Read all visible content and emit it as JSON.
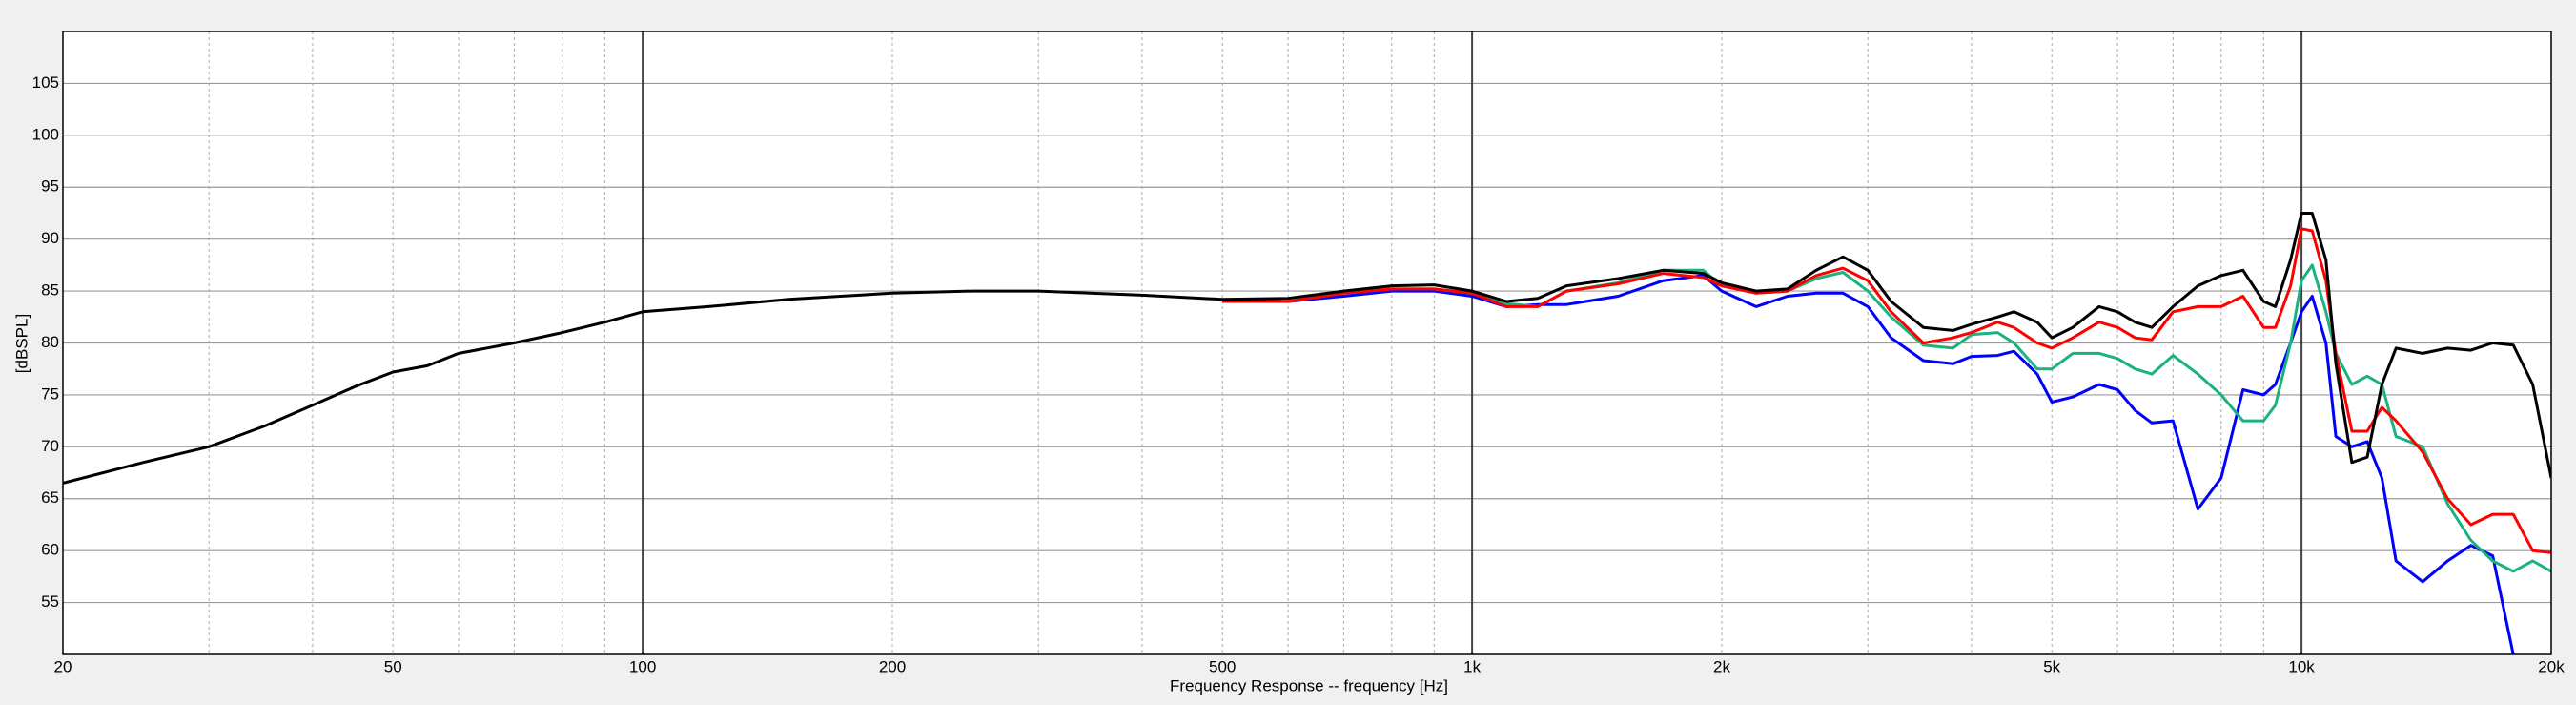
{
  "chart_data": {
    "type": "line",
    "xlabel": "Frequency Response -- frequency [Hz]",
    "ylabel": "[dBSPL]",
    "xscale": "log",
    "xlim": [
      20,
      20000
    ],
    "ylim": [
      50,
      110
    ],
    "xticks": [
      20,
      50,
      100,
      200,
      500,
      {
        "value": 1000,
        "label": "1k"
      },
      {
        "value": 2000,
        "label": "2k"
      },
      {
        "value": 5000,
        "label": "5k"
      },
      {
        "value": 10000,
        "label": "10k"
      },
      {
        "value": 20000,
        "label": "20k"
      }
    ],
    "x_minor_grid": [
      30,
      40,
      60,
      70,
      80,
      90,
      300,
      400,
      600,
      700,
      800,
      900,
      3000,
      4000,
      6000,
      7000,
      8000,
      9000
    ],
    "x_major_grid": [
      100,
      1000,
      10000
    ],
    "yticks": [
      55,
      60,
      65,
      70,
      75,
      80,
      85,
      90,
      95,
      100,
      105
    ],
    "grid": true,
    "x": [
      20,
      25,
      30,
      35,
      40,
      45,
      50,
      55,
      60,
      70,
      80,
      90,
      100,
      120,
      150,
      200,
      250,
      300,
      400,
      500,
      600,
      700,
      800,
      900,
      1000,
      1100,
      1200,
      1300,
      1500,
      1700,
      1900,
      2000,
      2200,
      2400,
      2600,
      2800,
      3000,
      3200,
      3500,
      3800,
      4000,
      4300,
      4500,
      4800,
      5000,
      5300,
      5700,
      6000,
      6300,
      6600,
      7000,
      7500,
      8000,
      8500,
      9000,
      9300,
      9700,
      10000,
      10300,
      10700,
      11000,
      11500,
      12000,
      12500,
      13000,
      14000,
      15000,
      16000,
      17000,
      18000,
      19000,
      20000
    ],
    "series": [
      {
        "name": "black",
        "color": "#000000",
        "values": [
          66.5,
          68.5,
          70,
          72,
          74,
          75.8,
          77.2,
          77.8,
          79,
          80,
          81,
          82,
          83,
          83.5,
          84.2,
          84.8,
          85,
          85,
          84.6,
          84.2,
          84.3,
          85,
          85.5,
          85.6,
          85,
          84,
          84.3,
          85.5,
          86.2,
          87,
          86.7,
          85.8,
          85,
          85.2,
          87,
          88.3,
          87,
          84,
          81.5,
          81.2,
          81.8,
          82.5,
          83,
          82,
          80.5,
          81.5,
          83.5,
          83,
          82,
          81.5,
          83.5,
          85.5,
          86.5,
          87,
          84,
          83.5,
          88,
          92.5,
          92.5,
          88,
          78,
          68.5,
          69,
          76,
          79.5,
          79,
          79.5,
          79.3,
          80,
          79.8,
          76,
          67
        ]
      },
      {
        "name": "red",
        "color": "#ff0000",
        "values": [
          null,
          null,
          null,
          null,
          null,
          null,
          null,
          null,
          null,
          null,
          null,
          null,
          null,
          null,
          null,
          null,
          null,
          null,
          null,
          84,
          84,
          84.8,
          85.2,
          85.2,
          84.8,
          83.5,
          83.5,
          85,
          85.7,
          86.7,
          86.3,
          85.5,
          84.8,
          85,
          86.5,
          87.2,
          86,
          83,
          80,
          80.5,
          81,
          82,
          81.5,
          80,
          79.5,
          80.5,
          82,
          81.5,
          80.5,
          80.3,
          83,
          83.5,
          83.5,
          84.5,
          81.5,
          81.5,
          85.5,
          91,
          90.8,
          86,
          79,
          71.5,
          71.5,
          73.8,
          72.5,
          69.5,
          65,
          62.5,
          63.5,
          63.5,
          60,
          59.8
        ]
      },
      {
        "name": "green",
        "color": "#1ab37f",
        "values": [
          null,
          null,
          null,
          null,
          null,
          null,
          null,
          null,
          null,
          null,
          null,
          null,
          null,
          null,
          null,
          null,
          null,
          null,
          null,
          84,
          84,
          84.8,
          85.2,
          85.2,
          84.8,
          83.8,
          83.5,
          85,
          85.8,
          87,
          87,
          85.5,
          84.8,
          85,
          86.2,
          86.8,
          85,
          82.5,
          79.8,
          79.5,
          80.8,
          81,
          80,
          77.5,
          77.5,
          79,
          79,
          78.5,
          77.5,
          77,
          78.8,
          77,
          75,
          72.5,
          72.5,
          74,
          80,
          86,
          87.5,
          83,
          79,
          76,
          76.8,
          76,
          71,
          70,
          64.5,
          61,
          59,
          58,
          59,
          58
        ]
      },
      {
        "name": "blue",
        "color": "#0000ff",
        "values": [
          null,
          null,
          null,
          null,
          null,
          null,
          null,
          null,
          null,
          null,
          null,
          null,
          null,
          null,
          null,
          null,
          null,
          null,
          null,
          84,
          84,
          84.5,
          85,
          85,
          84.5,
          83.5,
          83.7,
          83.7,
          84.5,
          86,
          86.5,
          85,
          83.5,
          84.5,
          84.8,
          84.8,
          83.5,
          80.5,
          78.3,
          78,
          78.7,
          78.8,
          79.2,
          77,
          74.3,
          74.8,
          76,
          75.5,
          73.5,
          72.3,
          72.5,
          64,
          67,
          75.5,
          75,
          76,
          80,
          83,
          84.5,
          80,
          71,
          70,
          70.5,
          67,
          59,
          57,
          59,
          60.5,
          59.5,
          50,
          null,
          51.5
        ]
      }
    ]
  }
}
